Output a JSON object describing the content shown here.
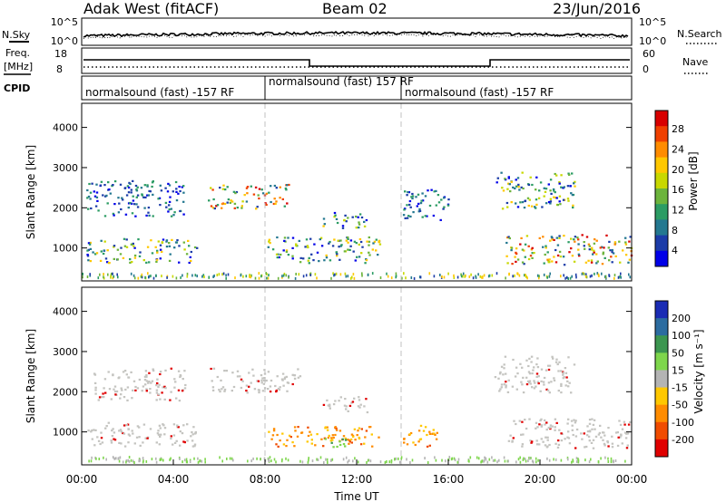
{
  "header": {
    "station": "Adak West (fitACF)",
    "beam": "Beam 02",
    "date": "23/Jun/2016"
  },
  "noise_panel": {
    "left_label": "N.Sky",
    "left_ticks": [
      "10^5",
      "10^0"
    ],
    "right_label": "N.Search",
    "right_ticks": [
      "10^5",
      "10^0"
    ]
  },
  "freq_panel": {
    "left_label_1": "Freq.",
    "left_label_2": "[MHz]",
    "left_ticks": [
      "18",
      "8"
    ],
    "right_label": "Nave",
    "right_ticks": [
      "60",
      "0"
    ]
  },
  "cpid_panel": {
    "label": "CPID",
    "segments": [
      {
        "text": "normalsound (fast) -157 RF",
        "start": "00:00"
      },
      {
        "text": "normalsound (fast) 157 RF",
        "start": "08:00"
      },
      {
        "text": "normalsound (fast) -157 RF",
        "start": "14:00"
      }
    ]
  },
  "power_colorbar": {
    "label": "Power [dB]",
    "ticks": [
      "28",
      "24",
      "20",
      "16",
      "12",
      "8",
      "4"
    ],
    "colors": [
      "#d80000",
      "#f04000",
      "#ff8c00",
      "#ffc800",
      "#c8d800",
      "#6cb43c",
      "#2c9c64",
      "#247890",
      "#1c3ca8",
      "#0000e8"
    ]
  },
  "velocity_colorbar": {
    "label": "Velocity [m s⁻¹]",
    "ticks": [
      "200",
      "100",
      "50",
      "15",
      "-15",
      "-50",
      "-100",
      "-200"
    ],
    "colors": [
      "#1a2cb4",
      "#2c6ca0",
      "#3c9650",
      "#7ed64c",
      "#b4b4b4",
      "#ffc800",
      "#ff8c00",
      "#f04c00",
      "#e00000"
    ]
  },
  "chart_data": [
    {
      "type": "heatmap",
      "title": "Power",
      "xlabel": "Time UT",
      "ylabel": "Slant Range [km]",
      "xlim": [
        "00:00",
        "24:00"
      ],
      "ylim": [
        180,
        4600
      ],
      "y_ticks": [
        1000,
        2000,
        3000,
        4000
      ],
      "x_ticks": [
        "00:00",
        "04:00",
        "08:00",
        "12:00",
        "16:00",
        "20:00",
        "00:00"
      ],
      "scatter_regions": [
        {
          "t0": 0.2,
          "t1": 5.0,
          "r0": 650,
          "r1": 1250,
          "level": "mid"
        },
        {
          "t0": 0.2,
          "t1": 4.5,
          "r0": 1800,
          "r1": 2700,
          "level": "low"
        },
        {
          "t0": 5.5,
          "t1": 9.0,
          "r0": 2000,
          "r1": 2600,
          "level": "high"
        },
        {
          "t0": 8.1,
          "t1": 13.0,
          "r0": 650,
          "r1": 1300,
          "level": "mid"
        },
        {
          "t0": 10.5,
          "t1": 12.5,
          "r0": 1500,
          "r1": 1900,
          "level": "mid"
        },
        {
          "t0": 14.0,
          "t1": 16.0,
          "r0": 1700,
          "r1": 2500,
          "level": "low"
        },
        {
          "t0": 18.0,
          "t1": 21.5,
          "r0": 2000,
          "r1": 2900,
          "level": "mid"
        },
        {
          "t0": 18.5,
          "t1": 24.0,
          "r0": 600,
          "r1": 1350,
          "level": "high"
        }
      ]
    },
    {
      "type": "heatmap",
      "title": "Velocity",
      "xlabel": "Time UT",
      "ylabel": "Slant Range [km]",
      "xlim": [
        "00:00",
        "24:00"
      ],
      "ylim": [
        180,
        4600
      ],
      "y_ticks": [
        1000,
        2000,
        3000,
        4000
      ],
      "x_ticks": [
        "00:00",
        "04:00",
        "08:00",
        "12:00",
        "16:00",
        "20:00",
        "00:00"
      ],
      "scatter_regions": [
        {
          "t0": 0.2,
          "t1": 5.0,
          "r0": 650,
          "r1": 1250,
          "level": "ground"
        },
        {
          "t0": 0.5,
          "t1": 4.5,
          "r0": 1800,
          "r1": 2600,
          "level": "ground"
        },
        {
          "t0": 5.5,
          "t1": 9.5,
          "r0": 2000,
          "r1": 2600,
          "level": "ground"
        },
        {
          "t0": 8.1,
          "t1": 13.0,
          "r0": 650,
          "r1": 1150,
          "level": "away"
        },
        {
          "t0": 10.0,
          "t1": 11.5,
          "r0": 650,
          "r1": 850,
          "level": "toward"
        },
        {
          "t0": 10.5,
          "t1": 12.5,
          "r0": 1500,
          "r1": 1900,
          "level": "ground"
        },
        {
          "t0": 14.0,
          "t1": 15.5,
          "r0": 650,
          "r1": 1200,
          "level": "away"
        },
        {
          "t0": 18.0,
          "t1": 21.5,
          "r0": 2000,
          "r1": 2900,
          "level": "ground"
        },
        {
          "t0": 18.5,
          "t1": 24.0,
          "r0": 600,
          "r1": 1350,
          "level": "ground"
        }
      ]
    }
  ]
}
